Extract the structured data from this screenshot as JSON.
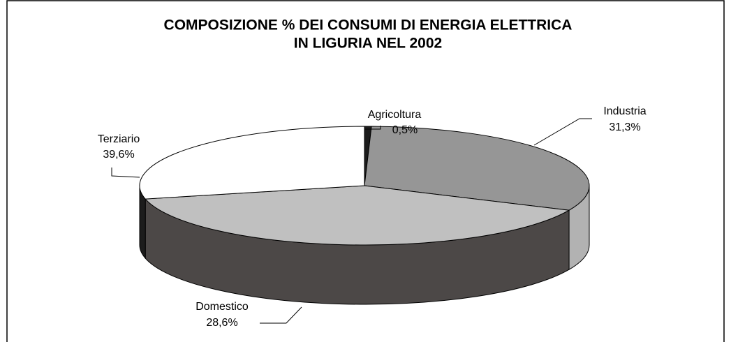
{
  "chart_data": {
    "type": "pie3d",
    "title": [
      "COMPOSIZIONE % DEI CONSUMI DI ENERGIA ELETTRICA",
      "IN LIGURIA NEL 2002"
    ],
    "categories": [
      "Agricoltura",
      "Industria",
      "Terziario",
      "Domestico"
    ],
    "values": [
      0.5,
      31.3,
      39.6,
      28.6
    ],
    "value_labels": [
      "0,5%",
      "31,3%",
      "39,6%",
      "28,6%"
    ],
    "colors": [
      "#1c1c1c",
      "#969696",
      "#c0c0c0",
      "#ffffff"
    ],
    "side_colors": [
      "#1c1c1c",
      "#b2b2b2",
      "#4c4847",
      "#1c1c1c"
    ]
  }
}
